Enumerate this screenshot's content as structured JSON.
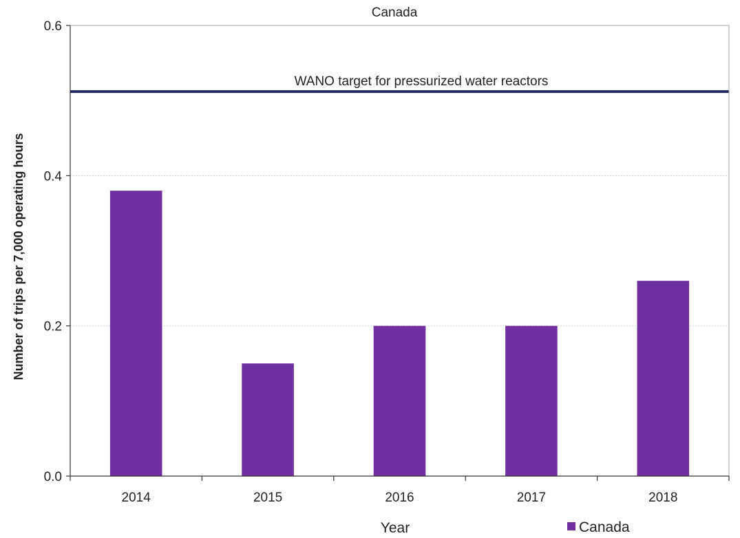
{
  "chart_data": {
    "type": "bar",
    "title": "Canada",
    "xlabel": "Year",
    "ylabel": "Number of trips per 7,000 operating hours",
    "categories": [
      "2014",
      "2015",
      "2016",
      "2017",
      "2018"
    ],
    "series": [
      {
        "name": "Canada",
        "values": [
          0.38,
          0.15,
          0.2,
          0.2,
          0.26
        ],
        "color": "#7030A0"
      }
    ],
    "ylim": [
      0,
      0.6
    ],
    "yticks": [
      0.0,
      0.2,
      0.4,
      0.6
    ],
    "ytick_labels": [
      "0.0",
      "0.2",
      "0.4",
      "0.6"
    ],
    "reference_line": {
      "value": 0.512,
      "label": "WANO target for pressurized water reactors",
      "color": "#1F2A5E"
    },
    "grid": true,
    "legend": "bottom-right"
  }
}
